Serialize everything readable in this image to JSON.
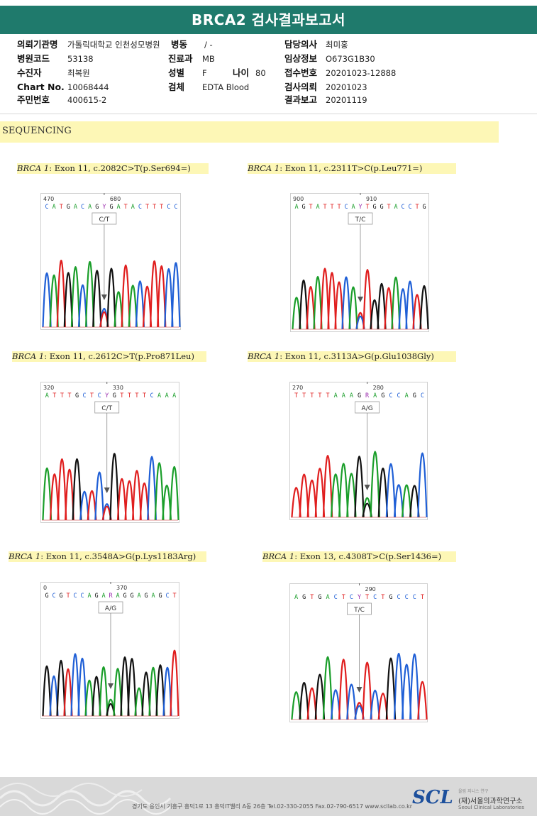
{
  "report_title": "BRCA2 검사결과보고서",
  "info": {
    "institution_label": "의뢰기관명",
    "institution": "가톨릭대학교 인천성모병원",
    "ward_label": "병동",
    "ward": "/ -",
    "doctor_label": "담당의사",
    "doctor": "최미홍",
    "hospital_code_label": "병원코드",
    "hospital_code": "53138",
    "department_label": "진료과",
    "department": "MB",
    "clinical_info_label": "임상정보",
    "clinical_info": "O673G1B30",
    "patient_label": "수진자",
    "patient": "최복원",
    "sex_label": "성별",
    "sex": "F",
    "age_label": "나이",
    "age": "80",
    "receipt_no_label": "접수번호",
    "receipt_no": "20201023-12888",
    "chart_no_label": "Chart No.",
    "chart_no": "10068444",
    "specimen_label": "검체",
    "specimen": "EDTA Blood",
    "request_date_label": "검사의뢰",
    "request_date": "20201023",
    "id_no_label": "주민번호",
    "id_no": "400615-2",
    "report_date_label": "결과보고",
    "report_date": "20201119"
  },
  "section_title": "SEQUENCING",
  "variants": [
    {
      "gene": "BRCA 1",
      "exon": ": Exon 11",
      "change": ", c.2082C>T(p.Ser694=)",
      "call": "C/T",
      "seq_left": "C A T G A C A G",
      "seq_mid": "Y",
      "seq_right": "G A T A C T T T C C",
      "pos1": "470",
      "pos2": "680"
    },
    {
      "gene": "BRCA 1",
      "exon": ": Exon 11",
      "change": ", c.2311T>C(p.Leu771=)",
      "call": "T/C",
      "seq_left": "A G T A T T T C A",
      "seq_mid": "Y",
      "seq_right": "T G G T A C C T G",
      "pos1": "900",
      "pos2": "910"
    },
    {
      "gene": "BRCA 1",
      "exon": ": Exon 11",
      "change": ", c.2612C>T(p.Pro871Leu)",
      "call": "C/T",
      "seq_left": "A T T T G C T C",
      "seq_mid": "Y",
      "seq_right": "G T T T T C A A A",
      "pos1": "320",
      "pos2": "330"
    },
    {
      "gene": "BRCA 1",
      "exon": ": Exon 11",
      "change": ", c.3113A>G(p.Glu1038Gly)",
      "call": "A/G",
      "seq_left": "T T T T T A A A G",
      "seq_mid": "R",
      "seq_right": "A G C C A G C",
      "pos1": "270",
      "pos2": "280"
    },
    {
      "gene": "BRCA 1",
      "exon": ": Exon 11",
      "change": ", c.3548A>G(p.Lys1183Arg)",
      "call": "A/G",
      "seq_left": "G C G T C C A G A",
      "seq_mid": "R",
      "seq_right": "A G G A G A G C T",
      "pos1": "0",
      "pos2": "370"
    },
    {
      "gene": "BRCA 1",
      "exon": ": Exon 13",
      "change": ", c.4308T>C(p.Ser1436=)",
      "call": "T/C",
      "seq_left": "A G T G A C T C",
      "seq_mid": "Y",
      "seq_right": "T C T G C C C T",
      "pos1": "",
      "pos2": "290"
    }
  ],
  "footer": {
    "address": "경기도 용인시 기흥구 흥덕1로 13 흥덕IT밸리 A동 26층  Tel.02-330-2055  Fax.02-790-6517  www.scllab.co.kr",
    "logo": "SCL",
    "org_small": "울림   지니스   연구",
    "org": "(재)서울의과학연구소",
    "org_en": "Seoul Clinical Laboratories"
  },
  "colors": {
    "header": "#1f7a6c",
    "highlight": "#fdf7b6",
    "A": "#1a9e2a",
    "C": "#1f5fd6",
    "G": "#111111",
    "T": "#e01e1e",
    "mixed": "#9b2fae"
  }
}
